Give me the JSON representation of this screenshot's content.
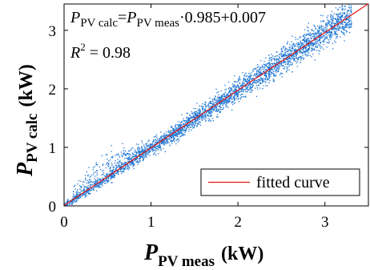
{
  "chart_data": {
    "type": "scatter",
    "title": "",
    "xlabel": {
      "main": "P",
      "sub": "PV meas",
      "unit": "(kW)"
    },
    "ylabel": {
      "main": "P",
      "sub": "PV calc",
      "unit": "(kW)"
    },
    "xlim": [
      0,
      3.5
    ],
    "ylim": [
      0,
      3.45
    ],
    "xticks": [
      0,
      1,
      2,
      3
    ],
    "yticks": [
      0,
      1,
      2,
      3
    ],
    "x_tick_labels": [
      "0",
      "1",
      "2",
      "3"
    ],
    "y_tick_labels": [
      "0",
      "1",
      "2",
      "3"
    ],
    "grid": false,
    "legend_position": "bottom-right",
    "annotations": {
      "equation": {
        "lhs_main": "P",
        "lhs_sub": "PV calc",
        "eq": "=",
        "rhs_main": "P",
        "rhs_sub": "PV meas",
        "rest": "·0.985+0.007"
      },
      "r2": {
        "prefix": "R",
        "sup": "2",
        "rest": " = 0.98"
      }
    },
    "fit": {
      "slope": 0.985,
      "intercept": 0.007,
      "r2": 0.98
    },
    "series": [
      {
        "type": "scatter",
        "color": "#1f77d4",
        "description_range_x": [
          0,
          3.3
        ],
        "sample_points": [
          [
            0.05,
            0.06
          ],
          [
            0.1,
            0.12
          ],
          [
            0.15,
            0.2
          ],
          [
            0.2,
            0.35
          ],
          [
            0.25,
            0.5
          ],
          [
            0.3,
            0.55
          ],
          [
            0.4,
            0.55
          ],
          [
            0.5,
            0.6
          ],
          [
            0.6,
            0.7
          ],
          [
            0.8,
            0.85
          ],
          [
            1.0,
            1.05
          ],
          [
            1.2,
            1.3
          ],
          [
            1.5,
            1.55
          ],
          [
            1.8,
            1.85
          ],
          [
            2.0,
            2.05
          ],
          [
            2.2,
            2.25
          ],
          [
            2.5,
            2.5
          ],
          [
            2.8,
            2.8
          ],
          [
            3.0,
            3.0
          ],
          [
            3.2,
            3.3
          ]
        ]
      },
      {
        "type": "line",
        "name": "fitted curve",
        "color": "#e01818",
        "x": [
          0,
          3.5
        ],
        "y": [
          0.007,
          3.4545
        ]
      }
    ]
  }
}
